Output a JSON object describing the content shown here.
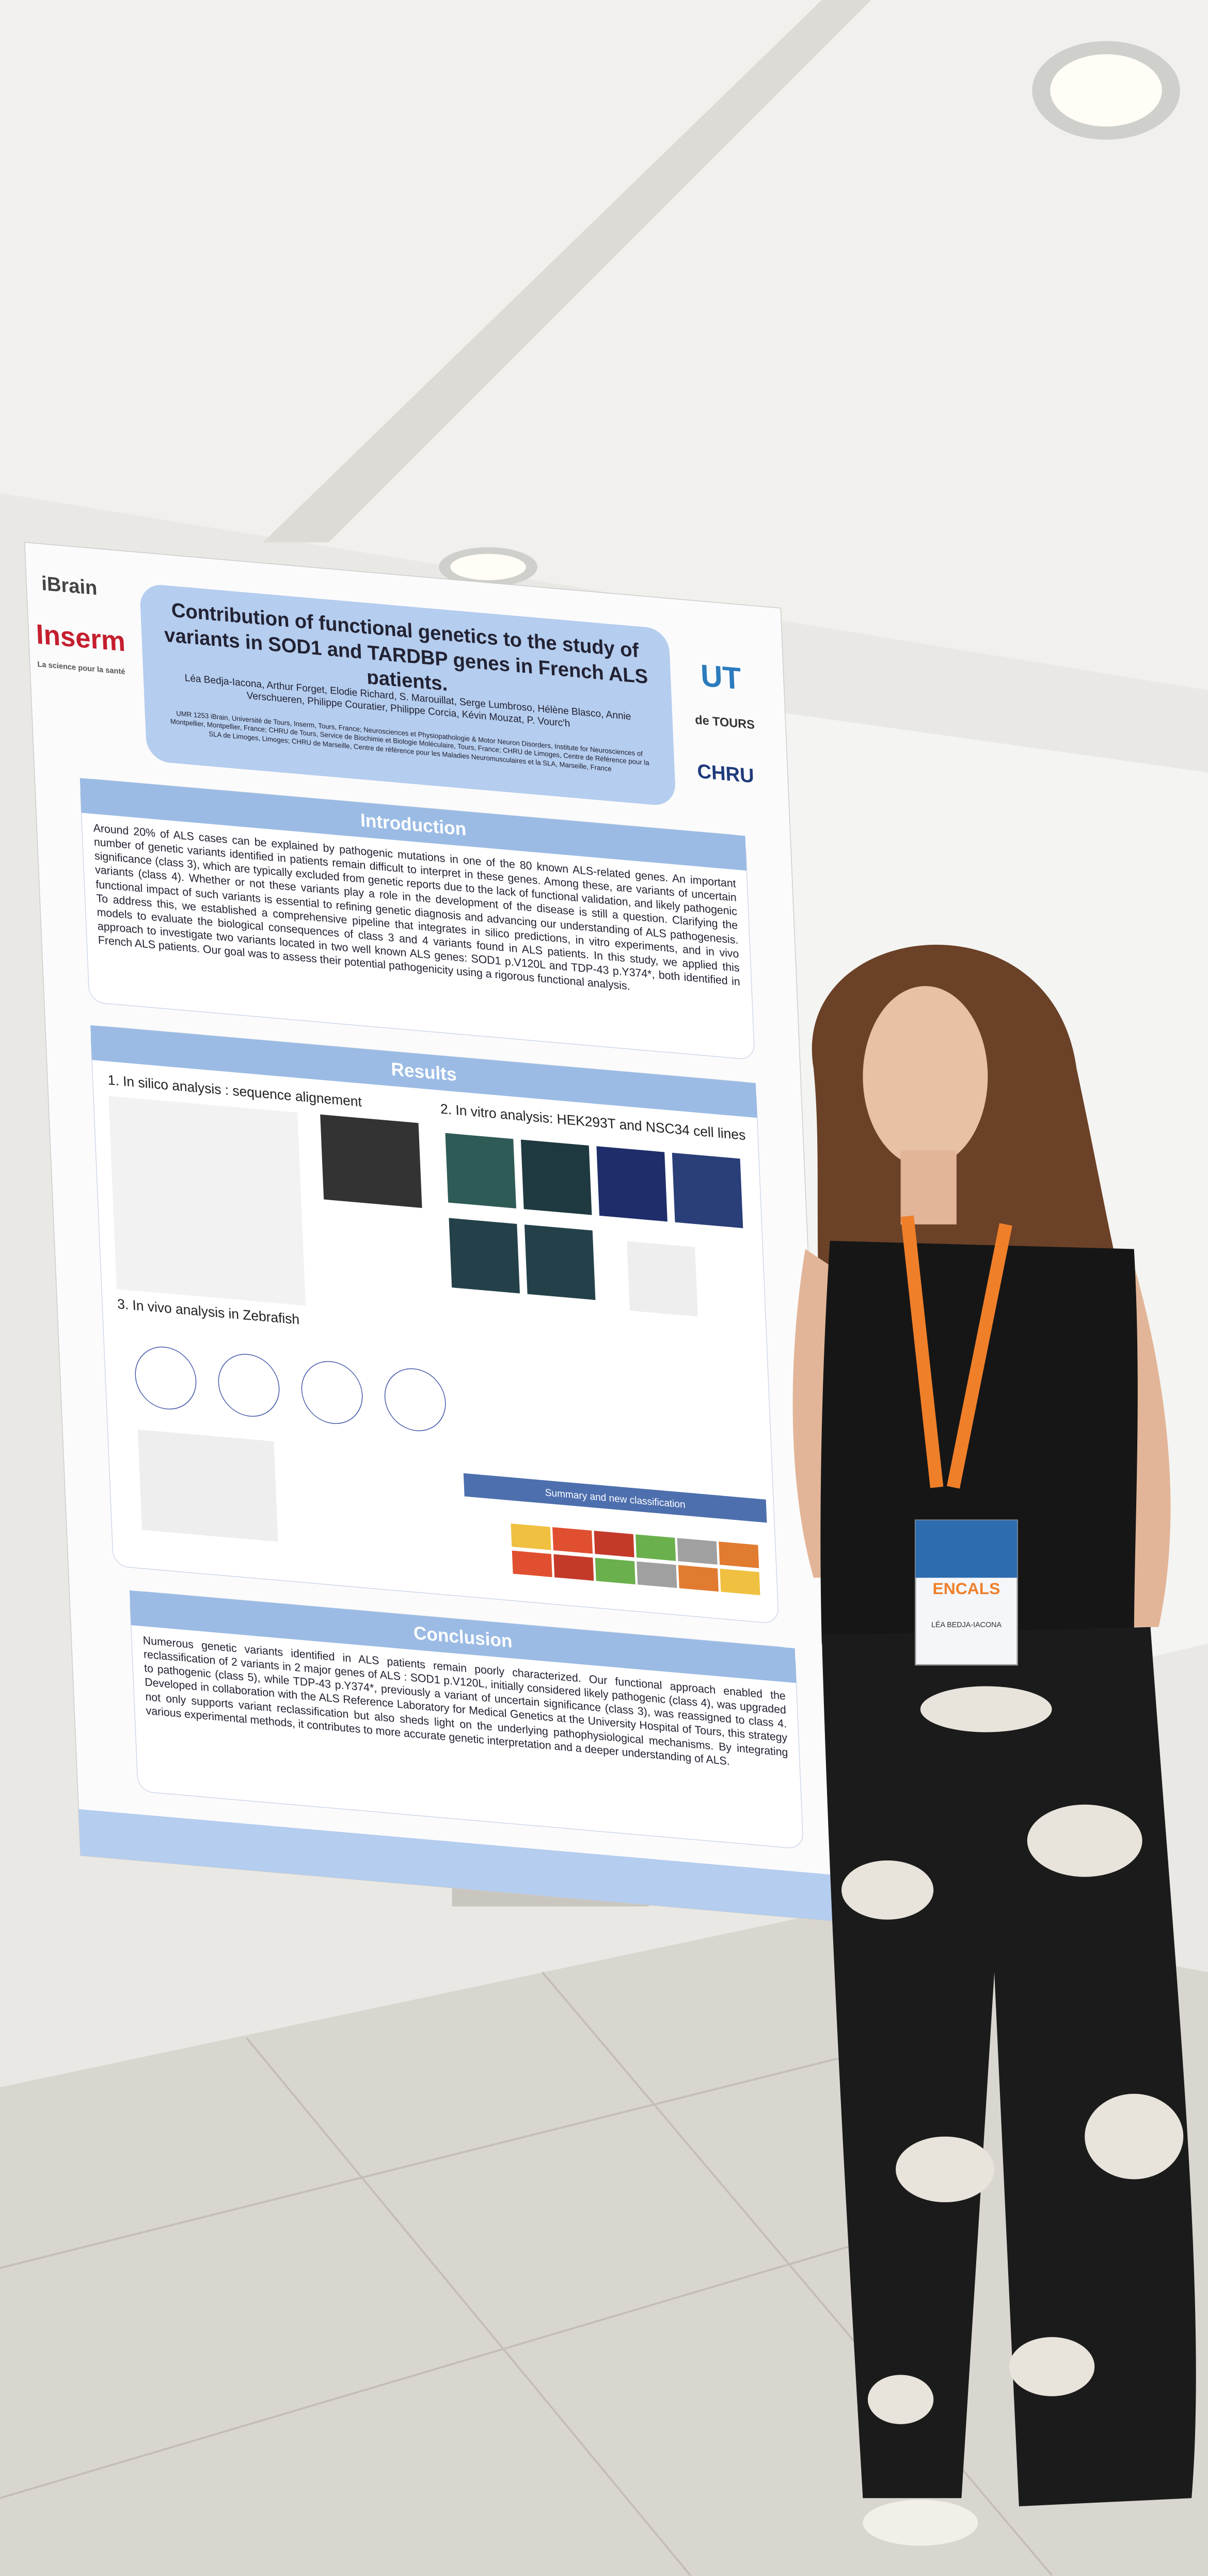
{
  "poster": {
    "title": "Contribution of functional genetics to the study of variants in SOD1 and TARDBP genes in French ALS patients.",
    "authors": "Léa Bedja-Iacona, Arthur Forget, Elodie Richard, S. Marouillat, Serge Lumbroso, Hélène Blasco, Annie Verschueren, Philippe Couratier, Philippe Corcia, Kévin Mouzat, P. Vourc'h",
    "affiliations": "UMR 1253 iBrain, Université de Tours, Inserm, Tours, France; Neurosciences et Physiopathologie & Motor Neuron Disorders, Institute for Neurosciences of Montpellier, Montpellier, France; CHRU de Tours, Service de Biochimie et Biologie Moléculaire, Tours, France; CHRU de Limoges, Centre de Référence pour la SLA de Limoges, Limoges; CHRU de Marseille, Centre de référence pour les Maladies Neuromusculaires et la SLA, Marseille, France",
    "logos": [
      "iBrain",
      "Inserm",
      "La science pour la santé",
      "UT",
      "de TOURS",
      "CHRU"
    ],
    "introduction": {
      "heading": "Introduction",
      "text": "Around 20% of ALS cases can be explained by pathogenic mutations in one of the 80 known ALS-related genes. An important number of genetic variants identified in patients remain difficult to interpret in these genes. Among these, are variants of uncertain significance (class 3), which are typically excluded from genetic reports due to the lack of functional validation, and likely pathogenic variants (class 4). Whether or not these variants play a role in the development of the disease is still a question. Clarifying the functional impact of such variants is essential to refining genetic diagnosis and advancing our understanding of ALS pathogenesis. To address this, we established a comprehensive pipeline that integrates in silico predictions, in vitro experiments, and in vivo models to evaluate the biological consequences of class 3 and 4 variants found in ALS patients. In this study, we applied this approach to investigate two variants located in two well known ALS genes: SOD1 p.V120L and TDP-43 p.Y374*, both identified in French ALS patients. Our goal was to assess their potential pathogenicity using a rigorous functional analysis."
    },
    "results": {
      "heading": "Results",
      "subsections": [
        "1. In silico analysis : sequence alignement",
        "2. In vitro analysis: HEK293T and NSC34 cell lines",
        "3. In vivo analysis in Zebrafish"
      ],
      "table_heading": "Summary and new classification"
    },
    "conclusion": {
      "heading": "Conclusion",
      "text": "Numerous genetic variants identified in ALS patients remain poorly characterized. Our functional approach enabled the reclassification of 2 variants in 2 major genes of ALS : SOD1 p.V120L, initially considered likely pathogenic (class 4), was upgraded to pathogenic (class 5), while TDP-43 p.Y374*, previously a variant of uncertain significance (class 3), was reassigned to class 4. Developed in collaboration with the ALS Reference Laboratory for Medical Genetics at the University Hospital of Tours, this strategy not only supports variant reclassification but also sheds light on the underlying pathophysiological mechanisms. By integrating various experimental methods, it contributes to more accurate genetic interpretation and a deeper understanding of ALS."
    }
  },
  "badge": {
    "event": "ENCALS",
    "name": "LÉA BEDJA-IACONA"
  }
}
